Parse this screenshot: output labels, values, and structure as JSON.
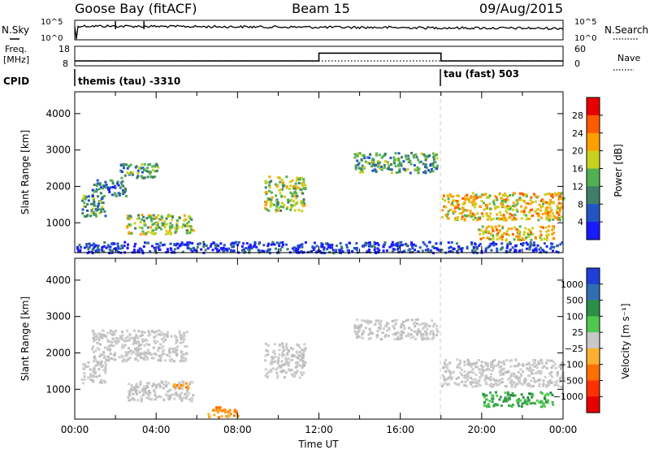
{
  "header": {
    "station": "Goose Bay (fitACF)",
    "beam": "Beam 15",
    "date": "09/Aug/2015"
  },
  "panels": {
    "nsky": {
      "left_label": "N.Sky",
      "right_label": "N.Search",
      "left_ticks": [
        "10^5",
        "10^0"
      ],
      "right_ticks": [
        "10^5",
        "10^0"
      ]
    },
    "freq": {
      "left_label_1": "Freq.",
      "left_label_2": "[MHz]",
      "right_label": "Nave",
      "left_ticks": [
        "18",
        "8"
      ],
      "right_ticks": [
        "60",
        "0"
      ],
      "freq_mhz": [
        {
          "from_h": 0,
          "to_h": 12,
          "value": 10.5
        },
        {
          "from_h": 12,
          "to_h": 18,
          "value": 14.5
        },
        {
          "from_h": 18,
          "to_h": 24,
          "value": 10.5
        }
      ],
      "nave_level": 15
    },
    "cpid": {
      "label": "CPID",
      "segments": [
        {
          "text": "themis (tau) -3310",
          "start_h": 0
        },
        {
          "text": "tau (fast) 503",
          "start_h": 18
        }
      ]
    }
  },
  "chart_data": [
    {
      "type": "heatmap",
      "panel": "power",
      "ylabel": "Slant Range [km]",
      "xlabel": "",
      "ylim": [
        180,
        4600
      ],
      "xlim_hours": [
        0,
        24
      ],
      "y_ticks": [
        "1000",
        "2000",
        "3000",
        "4000"
      ],
      "colorbar": {
        "label": "Power [dB]",
        "ticks": [
          "4",
          "8",
          "12",
          "16",
          "20",
          "24",
          "28"
        ],
        "colors": [
          "#1a1aff",
          "#2255c4",
          "#3f7f6a",
          "#52b052",
          "#c8d21e",
          "#ffa000",
          "#ff5a00",
          "#e60000"
        ]
      },
      "echo_regions": [
        {
          "x0": 0.3,
          "x1": 1.5,
          "y0": 1200,
          "y1": 1800,
          "level": 3
        },
        {
          "x0": 0.8,
          "x1": 2.5,
          "y0": 1750,
          "y1": 2200,
          "level": 2
        },
        {
          "x0": 2.2,
          "x1": 4.2,
          "y0": 2250,
          "y1": 2650,
          "level": 3
        },
        {
          "x0": 2.5,
          "x1": 5.8,
          "y0": 700,
          "y1": 1250,
          "level": 4
        },
        {
          "x0": 9.3,
          "x1": 11.3,
          "y0": 1350,
          "y1": 2300,
          "level": 4
        },
        {
          "x0": 13.7,
          "x1": 17.8,
          "y0": 2400,
          "y1": 2950,
          "level": 3
        },
        {
          "x0": 18.0,
          "x1": 24.0,
          "y0": 1100,
          "y1": 1850,
          "level": 5
        },
        {
          "x0": 19.8,
          "x1": 23.5,
          "y0": 550,
          "y1": 950,
          "level": 5
        },
        {
          "x0": 0.0,
          "x1": 24.0,
          "y0": 200,
          "y1": 500,
          "level": 1
        }
      ]
    },
    {
      "type": "heatmap",
      "panel": "velocity",
      "ylabel": "Slant Range [km]",
      "xlabel": "Time UT",
      "ylim": [
        180,
        4600
      ],
      "xlim_hours": [
        0,
        24
      ],
      "x_ticks": [
        "00:00",
        "04:00",
        "08:00",
        "12:00",
        "16:00",
        "20:00",
        "00:00"
      ],
      "y_ticks": [
        "1000",
        "2000",
        "3000",
        "4000"
      ],
      "colorbar": {
        "label": "Velocity [m s⁻¹]",
        "ticks": [
          "1000",
          "500",
          "100",
          "25",
          "−25",
          "−100",
          "−500",
          "−1000"
        ],
        "colors": [
          "#1f3fd8",
          "#2f6fb0",
          "#2c8f48",
          "#50c850",
          "#c8c8c8",
          "#ffb030",
          "#ff7000",
          "#ff3000",
          "#e60000"
        ]
      },
      "echo_regions": [
        {
          "x0": 0.3,
          "x1": 1.5,
          "y0": 1200,
          "y1": 1800,
          "color": "gray"
        },
        {
          "x0": 0.8,
          "x1": 5.5,
          "y0": 1800,
          "y1": 2650,
          "color": "gray"
        },
        {
          "x0": 2.5,
          "x1": 5.8,
          "y0": 700,
          "y1": 1250,
          "color": "gray"
        },
        {
          "x0": 4.8,
          "x1": 5.6,
          "y0": 1050,
          "y1": 1250,
          "color": "orange"
        },
        {
          "x0": 9.3,
          "x1": 11.3,
          "y0": 1350,
          "y1": 2300,
          "color": "gray"
        },
        {
          "x0": 13.7,
          "x1": 17.8,
          "y0": 2400,
          "y1": 2950,
          "color": "gray"
        },
        {
          "x0": 18.0,
          "x1": 24.0,
          "y0": 1100,
          "y1": 1850,
          "color": "gray"
        },
        {
          "x0": 20.0,
          "x1": 23.5,
          "y0": 550,
          "y1": 950,
          "color": "green"
        },
        {
          "x0": 6.5,
          "x1": 8.0,
          "y0": 250,
          "y1": 550,
          "color": "orange"
        }
      ]
    }
  ]
}
